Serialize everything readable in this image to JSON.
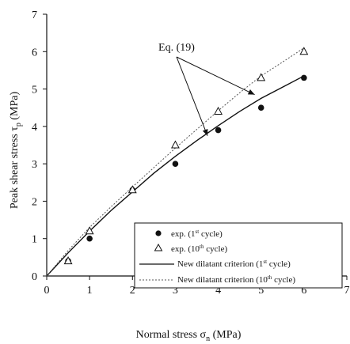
{
  "chart_data": {
    "type": "scatter",
    "title": "",
    "xlabel": "Normal stress σ",
    "xlabel_sub": "n",
    "xlabel_unit": " (MPa)",
    "ylabel": "Peak shear stress τ",
    "ylabel_sub": "p",
    "ylabel_unit": " (MPa)",
    "xlim": [
      0,
      7
    ],
    "ylim": [
      0,
      7
    ],
    "xticks": [
      0,
      1,
      2,
      3,
      4,
      5,
      6,
      7
    ],
    "yticks": [
      0,
      1,
      2,
      3,
      4,
      5,
      6,
      7
    ],
    "grid": false,
    "legend_position": "bottom-right",
    "series": [
      {
        "name_main": "exp. (1",
        "name_sup": "st",
        "name_end": " cycle)",
        "kind": "points",
        "marker": "filled-circle",
        "x": [
          0.5,
          1,
          2,
          3,
          4,
          5,
          6
        ],
        "y": [
          0.4,
          1.0,
          2.3,
          3.0,
          3.9,
          4.5,
          5.3
        ]
      },
      {
        "name_main": "exp. (10",
        "name_sup": "th",
        "name_end": " cycle)",
        "kind": "points",
        "marker": "open-triangle",
        "x": [
          0.5,
          1,
          2,
          3,
          4,
          5,
          6
        ],
        "y": [
          0.4,
          1.2,
          2.3,
          3.5,
          4.4,
          5.3,
          6.0
        ]
      },
      {
        "name_main": "New dilatant criterion (1",
        "name_sup": "st",
        "name_end": " cycle)",
        "kind": "line",
        "style": "solid",
        "x": [
          0,
          0.5,
          1,
          1.5,
          2,
          2.5,
          3,
          3.5,
          4,
          4.5,
          5,
          5.5,
          6
        ],
        "y": [
          0,
          0.62,
          1.2,
          1.75,
          2.25,
          2.75,
          3.2,
          3.62,
          4.02,
          4.4,
          4.75,
          5.05,
          5.35
        ]
      },
      {
        "name_main": "New dilatant criterion (10",
        "name_sup": "th",
        "name_end": " cycle)",
        "kind": "line",
        "style": "dotted",
        "x": [
          0,
          0.5,
          1,
          1.5,
          2,
          2.5,
          3,
          3.5,
          4,
          4.5,
          5,
          5.5,
          6
        ],
        "y": [
          0,
          0.68,
          1.3,
          1.85,
          2.38,
          2.9,
          3.42,
          3.92,
          4.42,
          4.9,
          5.35,
          5.72,
          6.1
        ]
      }
    ],
    "annotation": {
      "text": "Eq. (19)",
      "targets": [
        [
          3.75,
          3.75
        ],
        [
          4.85,
          4.85
        ]
      ]
    }
  }
}
